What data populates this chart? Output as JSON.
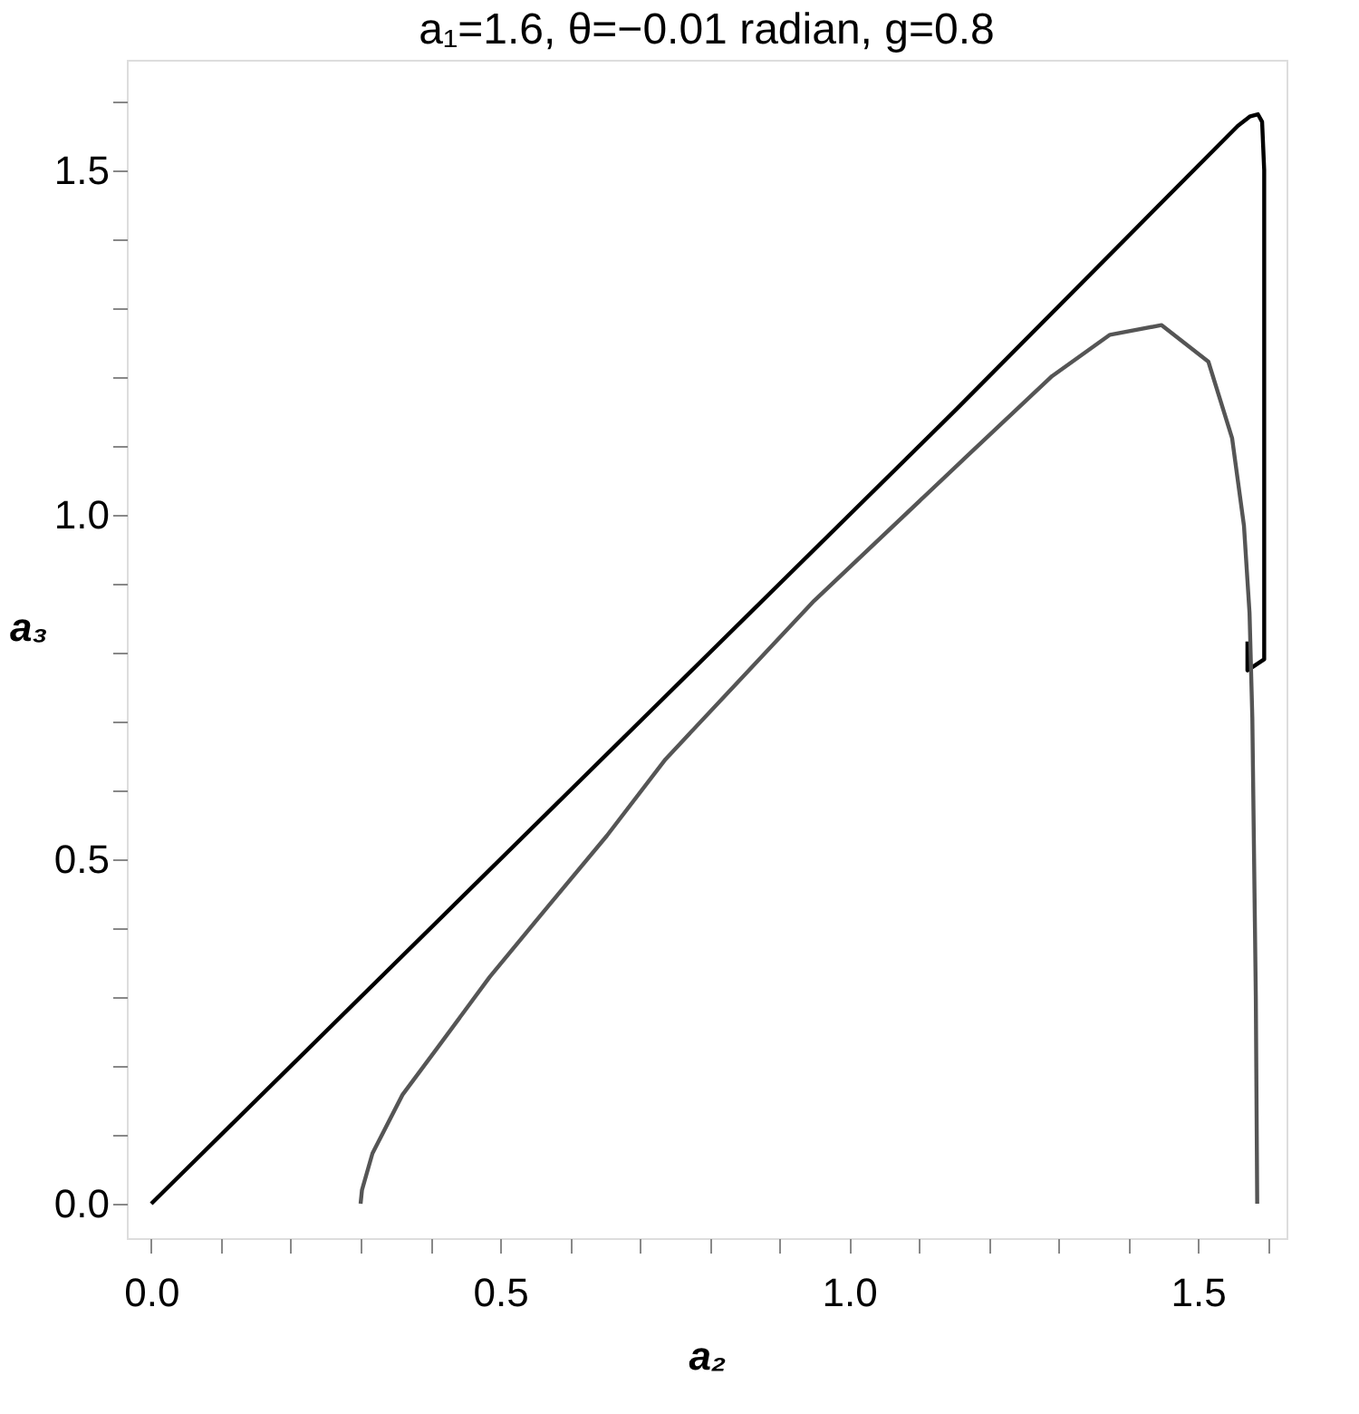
{
  "chart_data": {
    "type": "line",
    "title": "a₁=1.6, θ=−0.01 radian,  g=0.8",
    "xlabel": "a₂",
    "ylabel": "a₃",
    "xlim": [
      -0.035,
      1.627
    ],
    "ylim": [
      -0.05,
      1.66
    ],
    "xticks": [
      {
        "value": 0,
        "label": "0.0"
      },
      {
        "value": 0.1,
        "label": null
      },
      {
        "value": 0.2,
        "label": null
      },
      {
        "value": 0.3,
        "label": null
      },
      {
        "value": 0.4,
        "label": null
      },
      0.5,
      {
        "value": 0.6,
        "label": null
      },
      {
        "value": 0.7,
        "label": null
      },
      {
        "value": 0.8,
        "label": null
      },
      {
        "value": 0.9,
        "label": null
      },
      {
        "value": 1,
        "label": "1.0"
      },
      {
        "value": 1.1,
        "label": null
      },
      {
        "value": 1.2,
        "label": null
      },
      {
        "value": 1.3,
        "label": null
      },
      {
        "value": 1.4,
        "label": null
      },
      1.5,
      {
        "value": 1.6,
        "label": null
      }
    ],
    "yticks": [
      {
        "value": 0,
        "label": "0.0"
      },
      {
        "value": 0.1,
        "label": null
      },
      {
        "value": 0.2,
        "label": null
      },
      {
        "value": 0.3,
        "label": null
      },
      {
        "value": 0.4,
        "label": null
      },
      0.5,
      {
        "value": 0.6,
        "label": null
      },
      {
        "value": 0.7,
        "label": null
      },
      {
        "value": 0.8,
        "label": null
      },
      {
        "value": 0.9,
        "label": null
      },
      {
        "value": 1,
        "label": "1.0"
      },
      {
        "value": 1.1,
        "label": null
      },
      {
        "value": 1.2,
        "label": null
      },
      {
        "value": 1.3,
        "label": null
      },
      {
        "value": 1.4,
        "label": null
      },
      1.5,
      {
        "value": 1.6,
        "label": null
      }
    ],
    "grid": false,
    "legend": false,
    "marker": "none",
    "line_style": "solid",
    "series": [
      {
        "color": "#000000",
        "x": [
          0.0,
          1.155,
          1.557,
          1.575,
          1.586,
          1.592,
          1.595,
          1.595,
          1.571,
          1.571
        ],
        "values": [
          0.0,
          1.154,
          1.564,
          1.578,
          1.581,
          1.57,
          1.5,
          0.79,
          0.774,
          0.816
        ]
      },
      {
        "color": "#555555",
        "x": [
          0.3,
          0.302,
          0.317,
          0.36,
          0.41,
          0.485,
          0.569,
          0.653,
          0.737,
          0.95,
          1.165,
          1.291,
          1.374,
          1.448,
          1.515,
          1.549,
          1.566,
          1.574,
          1.578,
          1.583,
          1.585
        ],
        "values": [
          0.0,
          0.02,
          0.073,
          0.158,
          0.226,
          0.329,
          0.432,
          0.534,
          0.645,
          0.875,
          1.081,
          1.201,
          1.261,
          1.275,
          1.222,
          1.111,
          0.984,
          0.857,
          0.705,
          0.3,
          0.0
        ]
      }
    ]
  }
}
